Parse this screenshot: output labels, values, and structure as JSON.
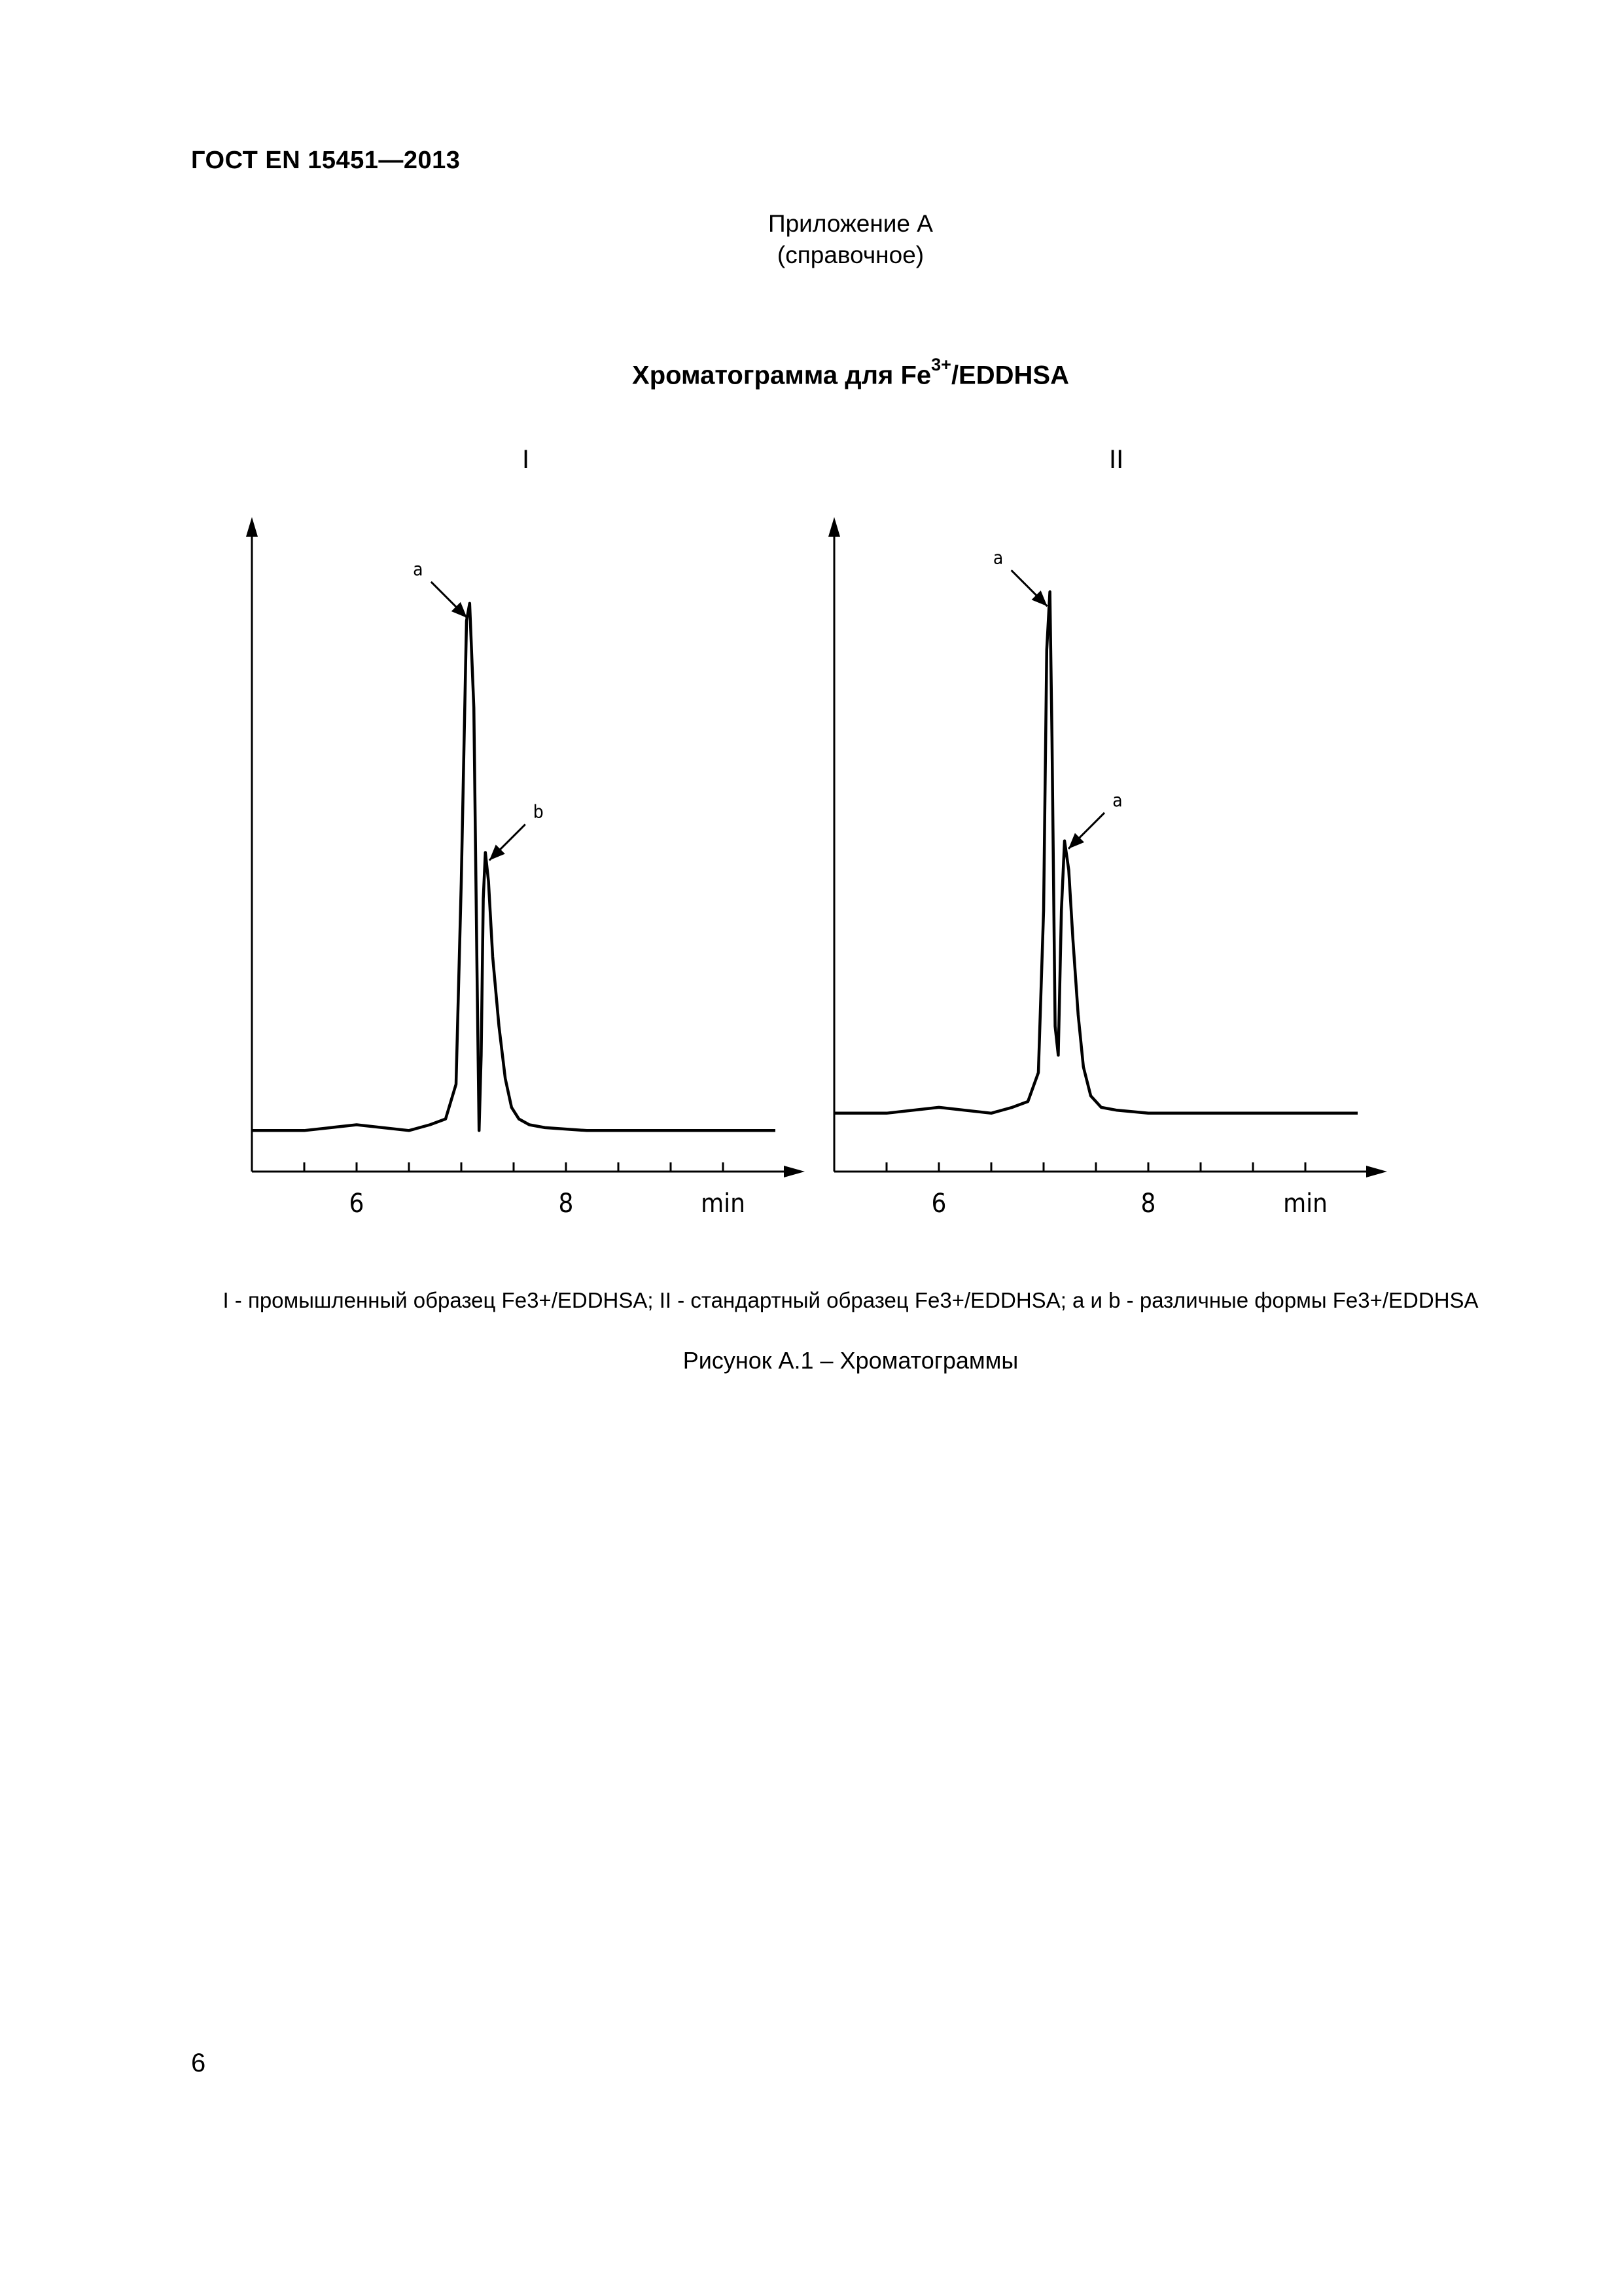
{
  "header": {
    "doc_code": "ГОСТ EN 15451—2013"
  },
  "annex": {
    "title": "Приложение А",
    "subtitle": "(справочное)"
  },
  "figure_heading": {
    "text": "Хроматограмма для Fe",
    "sup": "3+",
    "suffix": "/EDDHSA"
  },
  "chart_data": [
    {
      "type": "line",
      "panel_label": "I",
      "x_tick_labels": [
        "6",
        "8"
      ],
      "x_unit": "min",
      "xlim": [
        5.0,
        10.0
      ],
      "ylim": [
        0,
        1
      ],
      "x": [
        5.0,
        5.5,
        6.0,
        6.5,
        6.7,
        6.85,
        6.95,
        7.0,
        7.05,
        7.08,
        7.12,
        7.15,
        7.17,
        7.19,
        7.21,
        7.23,
        7.26,
        7.3,
        7.36,
        7.42,
        7.48,
        7.55,
        7.65,
        7.8,
        8.2,
        9.0,
        10.0
      ],
      "y": [
        0.02,
        0.02,
        0.03,
        0.02,
        0.03,
        0.04,
        0.1,
        0.45,
        0.9,
        0.93,
        0.75,
        0.3,
        0.02,
        0.15,
        0.42,
        0.5,
        0.45,
        0.32,
        0.2,
        0.11,
        0.06,
        0.04,
        0.03,
        0.025,
        0.02,
        0.02,
        0.02
      ],
      "peaks": [
        {
          "label": "a",
          "x": 7.08,
          "y": 0.93
        },
        {
          "label": "b",
          "x": 7.23,
          "y": 0.5
        }
      ]
    },
    {
      "type": "line",
      "panel_label": "II",
      "x_tick_labels": [
        "6",
        "8"
      ],
      "x_unit": "min",
      "xlim": [
        5.0,
        10.0
      ],
      "ylim": [
        0,
        1
      ],
      "x": [
        5.0,
        5.5,
        6.0,
        6.5,
        6.7,
        6.85,
        6.95,
        7.0,
        7.03,
        7.06,
        7.08,
        7.11,
        7.14,
        7.17,
        7.2,
        7.24,
        7.28,
        7.33,
        7.38,
        7.45,
        7.55,
        7.7,
        8.0,
        9.0,
        10.0
      ],
      "y": [
        0.05,
        0.05,
        0.06,
        0.05,
        0.06,
        0.07,
        0.12,
        0.4,
        0.85,
        0.95,
        0.7,
        0.2,
        0.15,
        0.4,
        0.52,
        0.47,
        0.35,
        0.22,
        0.13,
        0.08,
        0.06,
        0.055,
        0.05,
        0.05,
        0.05
      ],
      "peaks": [
        {
          "label": "a",
          "x": 7.06,
          "y": 0.95
        },
        {
          "label": "a",
          "x": 7.2,
          "y": 0.52
        }
      ]
    }
  ],
  "legend": {
    "text": "I - промышленный образец Fe3+/EDDHSA; II - стандартный образец Fe3+/EDDHSA; а и b - различные формы Fe3+/EDDHSA"
  },
  "caption": {
    "text": "Рисунок А.1 – Хроматограммы"
  },
  "footer": {
    "page_number": "6"
  }
}
